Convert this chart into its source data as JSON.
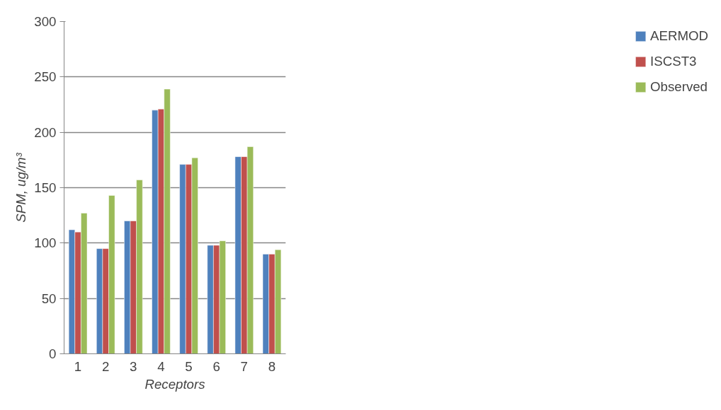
{
  "chart_data": {
    "type": "bar",
    "xlabel": "Receptors",
    "ylabel": "SPM, ug/m³",
    "categories": [
      "1",
      "2",
      "3",
      "4",
      "5",
      "6",
      "7",
      "8"
    ],
    "series": [
      {
        "name": "AERMOD",
        "color": "#4f81bd",
        "values": [
          112,
          95,
          120,
          220,
          171,
          98,
          178,
          90
        ]
      },
      {
        "name": "ISCST3",
        "color": "#c0504d",
        "values": [
          110,
          95,
          120,
          221,
          171,
          98,
          178,
          90
        ]
      },
      {
        "name": "Observed",
        "color": "#9bbb59",
        "values": [
          127,
          143,
          157,
          239,
          177,
          102,
          187,
          94
        ]
      }
    ],
    "ylim": [
      0,
      300
    ],
    "yticks": [
      0,
      50,
      100,
      150,
      200,
      250,
      300
    ],
    "grid": "y",
    "legend": "right"
  }
}
